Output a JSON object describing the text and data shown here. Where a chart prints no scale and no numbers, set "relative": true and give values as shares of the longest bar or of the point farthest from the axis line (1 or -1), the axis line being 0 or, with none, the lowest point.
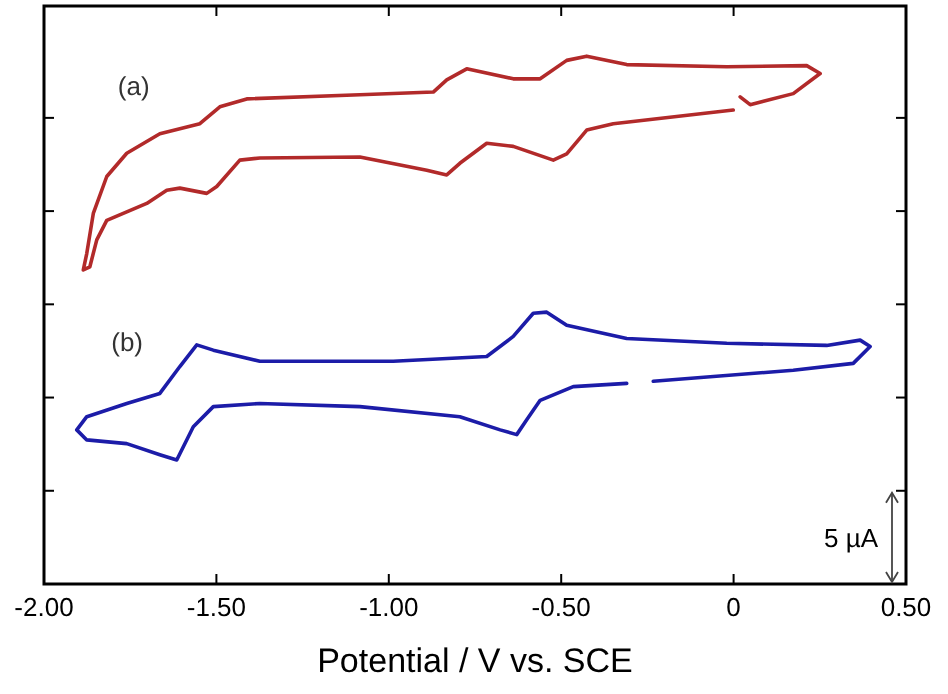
{
  "chart_data": {
    "type": "line",
    "relative": true,
    "xlabel": "Potential / V vs. SCE",
    "xlim": [
      -2,
      0.5
    ],
    "xticks": [
      {
        "value": -2,
        "label": "-2.00"
      },
      {
        "value": -1.5,
        "label": "-1.50"
      },
      {
        "value": -1,
        "label": "-1.00"
      },
      {
        "value": -0.5,
        "label": "-0.50"
      },
      0,
      {
        "value": 0.5,
        "label": "0.50"
      }
    ],
    "marker": "none",
    "grid": false,
    "annotations": [
      "5 µA"
    ],
    "series": [
      {
        "name": "(a)",
        "color": "#b22a2a",
        "x": [
          0.019,
          0.048,
          0.173,
          0.251,
          0.212,
          -0.02,
          -0.31,
          -0.426,
          -0.484,
          -0.561,
          -0.639,
          -0.774,
          -0.832,
          -0.871,
          -1.084,
          -1.412,
          -1.49,
          -1.548,
          -1.664,
          -1.76,
          -1.818,
          -1.857,
          -1.876,
          -1.886,
          -1.867,
          -1.847,
          -1.818,
          -1.76,
          -1.702,
          -1.644,
          -1.606,
          -1.528,
          -1.499,
          -1.432,
          -1.374,
          -1.084,
          -0.89,
          -0.832,
          -0.794,
          -0.716,
          -0.639,
          -0.523,
          -0.484,
          -0.426,
          -0.349,
          -0.001
        ],
        "values": [
          0.923,
          0.908,
          0.929,
          0.967,
          0.982,
          0.98,
          0.984,
          1,
          0.992,
          0.957,
          0.957,
          0.976,
          0.955,
          0.932,
          0.927,
          0.919,
          0.904,
          0.872,
          0.853,
          0.816,
          0.772,
          0.702,
          0.626,
          0.595,
          0.601,
          0.652,
          0.689,
          0.705,
          0.721,
          0.746,
          0.75,
          0.74,
          0.753,
          0.803,
          0.807,
          0.809,
          0.784,
          0.775,
          0.797,
          0.835,
          0.829,
          0.803,
          0.815,
          0.86,
          0.872,
          0.898
        ]
      },
      {
        "name": "(b)",
        "color": "#1c1ca8",
        "x": [
          -0.31,
          -0.465,
          -0.561,
          -0.6,
          -0.629,
          -0.677,
          -0.794,
          -1.084,
          -1.374,
          -1.509,
          -1.567,
          -1.615,
          -1.664,
          -1.76,
          -1.876,
          -1.905,
          -1.876,
          -1.76,
          -1.664,
          -1.606,
          -1.557,
          -1.509,
          -1.374,
          -0.987,
          -0.716,
          -0.639,
          -0.581,
          -0.542,
          -0.484,
          -0.31,
          -0.02,
          0.27,
          0.367,
          0.396,
          0.347,
          0.173,
          -0.233
        ],
        "values": [
          0.38,
          0.374,
          0.348,
          0.311,
          0.283,
          0.292,
          0.317,
          0.336,
          0.342,
          0.336,
          0.298,
          0.235,
          0.245,
          0.266,
          0.273,
          0.292,
          0.317,
          0.342,
          0.361,
          0.412,
          0.453,
          0.443,
          0.422,
          0.422,
          0.431,
          0.469,
          0.513,
          0.515,
          0.49,
          0.465,
          0.456,
          0.452,
          0.462,
          0.45,
          0.418,
          0.405,
          0.384
        ]
      }
    ]
  }
}
